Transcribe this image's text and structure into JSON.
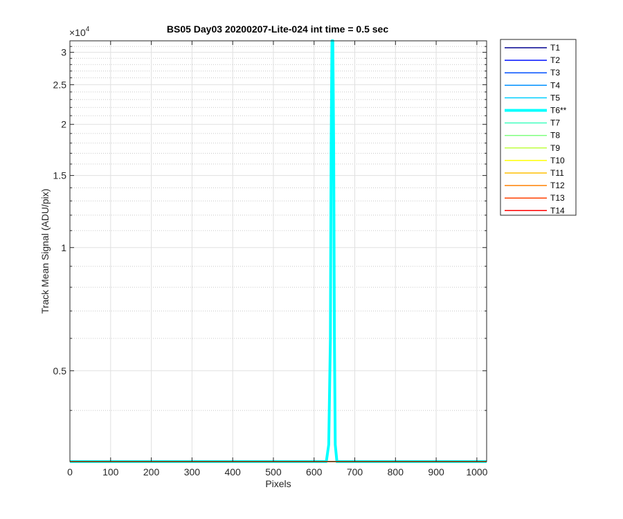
{
  "chart_data": {
    "type": "line",
    "title": "BS05 Day03 20200207-Lite-024 int time = 0.5 sec",
    "xlabel": "Pixels",
    "ylabel": "Track Mean Signal (ADU/pix)",
    "y_exponent_label": "×10",
    "y_exponent_power": "4",
    "y_scale": "log",
    "xlim": [
      0,
      1024
    ],
    "ylim": [
      3000,
      32000
    ],
    "x_ticks": [
      0,
      100,
      200,
      300,
      400,
      500,
      600,
      700,
      800,
      900,
      1000
    ],
    "y_ticks": [
      {
        "value": 5000,
        "label": "0.5"
      },
      {
        "value": 10000,
        "label": "1"
      },
      {
        "value": 15000,
        "label": "1.5"
      },
      {
        "value": 20000,
        "label": "2"
      },
      {
        "value": 25000,
        "label": "2.5"
      },
      {
        "value": 30000,
        "label": "3"
      }
    ],
    "y_minor_ticks": [
      4000,
      6000,
      7000,
      8000,
      9000,
      11000,
      12000,
      13000,
      14000,
      16000,
      17000,
      18000,
      19000,
      21000,
      22000,
      23000,
      24000,
      26000,
      27000,
      28000,
      29000,
      31000
    ],
    "grid": true,
    "legend_position": "outside-right",
    "series": [
      {
        "name": "T1",
        "color": "#00008f",
        "x": [
          0,
          1024
        ],
        "y": [
          3000,
          3000
        ]
      },
      {
        "name": "T2",
        "color": "#0010ff",
        "x": [
          0,
          1024
        ],
        "y": [
          3000,
          3000
        ]
      },
      {
        "name": "T3",
        "color": "#0050ff",
        "x": [
          0,
          1024
        ],
        "y": [
          3000,
          3000
        ]
      },
      {
        "name": "T4",
        "color": "#0090ff",
        "x": [
          0,
          1024
        ],
        "y": [
          3000,
          3000
        ]
      },
      {
        "name": "T5",
        "color": "#00cfff",
        "x": [
          0,
          1024
        ],
        "y": [
          3000,
          3000
        ]
      },
      {
        "name": "T6**",
        "color": "#00ffff",
        "highlight": true,
        "x": [
          0,
          630,
          636,
          640,
          642,
          644,
          646,
          648,
          650,
          652,
          656,
          1024
        ],
        "y": [
          3000,
          3000,
          3300,
          6000,
          18000,
          32000,
          32000,
          18000,
          6000,
          3300,
          3000,
          3000
        ]
      },
      {
        "name": "T7",
        "color": "#40ffbf",
        "x": [
          0,
          1024
        ],
        "y": [
          3000,
          3000
        ]
      },
      {
        "name": "T8",
        "color": "#80ff80",
        "x": [
          0,
          1024
        ],
        "y": [
          3000,
          3000
        ]
      },
      {
        "name": "T9",
        "color": "#bfff40",
        "x": [
          0,
          1024
        ],
        "y": [
          3000,
          3000
        ]
      },
      {
        "name": "T10",
        "color": "#ffff00",
        "x": [
          0,
          1024
        ],
        "y": [
          3000,
          3000
        ]
      },
      {
        "name": "T11",
        "color": "#ffbf00",
        "x": [
          0,
          1024
        ],
        "y": [
          3000,
          3000
        ]
      },
      {
        "name": "T12",
        "color": "#ff8000",
        "x": [
          0,
          1024
        ],
        "y": [
          3000,
          3000
        ]
      },
      {
        "name": "T13",
        "color": "#ff4000",
        "x": [
          0,
          1024
        ],
        "y": [
          3000,
          3000
        ]
      },
      {
        "name": "T14",
        "color": "#ff0000",
        "x": [
          0,
          1024
        ],
        "y": [
          3000,
          3000
        ]
      }
    ]
  }
}
